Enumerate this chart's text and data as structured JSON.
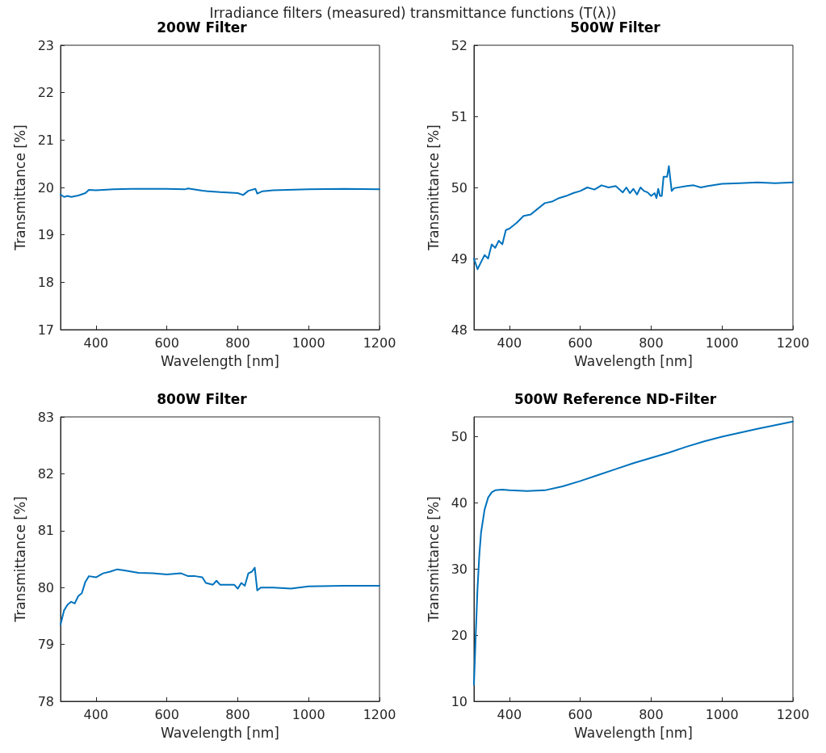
{
  "chart_data": [
    {
      "type": "other",
      "title": "Irradiance filters (measured) transmittance functions (T(λ))"
    },
    {
      "type": "line",
      "title": "200W Filter",
      "xlabel": "Wavelength [nm]",
      "ylabel": "Transmittance [%]",
      "xlim": [
        300,
        1200
      ],
      "xticks": [
        400,
        600,
        800,
        1000,
        1200
      ],
      "ylim": [
        17,
        23
      ],
      "yticks": [
        17,
        18,
        19,
        20,
        21,
        22,
        23
      ],
      "grid": false,
      "marker": "none",
      "line_style": "solid",
      "series": [
        {
          "color": "#0072bd",
          "x": [
            300,
            310,
            320,
            330,
            350,
            370,
            380,
            400,
            450,
            500,
            550,
            600,
            650,
            660,
            700,
            750,
            800,
            815,
            830,
            850,
            855,
            870,
            900,
            1000,
            1100,
            1200
          ],
          "values": [
            19.85,
            19.8,
            19.82,
            19.8,
            19.83,
            19.88,
            19.95,
            19.94,
            19.96,
            19.97,
            19.97,
            19.97,
            19.96,
            19.98,
            19.93,
            19.9,
            19.88,
            19.84,
            19.93,
            19.97,
            19.87,
            19.92,
            19.94,
            19.96,
            19.97,
            19.96
          ]
        }
      ]
    },
    {
      "type": "line",
      "title": "500W Filter",
      "xlabel": "Wavelength [nm]",
      "ylabel": "Transmittance [%]",
      "xlim": [
        300,
        1200
      ],
      "xticks": [
        400,
        600,
        800,
        1000,
        1200
      ],
      "ylim": [
        48,
        52
      ],
      "yticks": [
        48,
        49,
        50,
        51,
        52
      ],
      "grid": false,
      "marker": "none",
      "line_style": "solid",
      "series": [
        {
          "color": "#0072bd",
          "x": [
            300,
            310,
            320,
            330,
            340,
            350,
            360,
            370,
            380,
            390,
            400,
            420,
            440,
            460,
            480,
            500,
            520,
            540,
            560,
            580,
            600,
            620,
            640,
            660,
            680,
            700,
            720,
            730,
            740,
            750,
            760,
            770,
            780,
            790,
            800,
            810,
            815,
            820,
            825,
            830,
            835,
            845,
            850,
            858,
            865,
            900,
            920,
            940,
            960,
            1000,
            1050,
            1100,
            1150,
            1200
          ],
          "values": [
            49.0,
            48.85,
            48.95,
            49.05,
            49.0,
            49.2,
            49.15,
            49.25,
            49.2,
            49.4,
            49.42,
            49.5,
            49.6,
            49.62,
            49.7,
            49.78,
            49.8,
            49.85,
            49.88,
            49.92,
            49.95,
            50.0,
            49.97,
            50.03,
            50.0,
            50.02,
            49.93,
            50.0,
            49.92,
            49.98,
            49.9,
            50.0,
            49.95,
            49.93,
            49.88,
            49.92,
            49.85,
            49.98,
            49.88,
            49.88,
            50.15,
            50.15,
            50.3,
            49.95,
            49.99,
            50.02,
            50.03,
            50.0,
            50.02,
            50.05,
            50.06,
            50.07,
            50.06,
            50.07
          ]
        }
      ]
    },
    {
      "type": "line",
      "title": "800W Filter",
      "xlabel": "Wavelength [nm]",
      "ylabel": "Transmittance [%]",
      "xlim": [
        300,
        1200
      ],
      "xticks": [
        400,
        600,
        800,
        1000,
        1200
      ],
      "ylim": [
        78,
        83
      ],
      "yticks": [
        78,
        79,
        80,
        81,
        82,
        83
      ],
      "grid": false,
      "marker": "none",
      "line_style": "solid",
      "series": [
        {
          "color": "#0072bd",
          "x": [
            300,
            310,
            320,
            330,
            340,
            350,
            360,
            370,
            380,
            400,
            420,
            440,
            460,
            480,
            500,
            520,
            560,
            600,
            640,
            660,
            680,
            700,
            710,
            730,
            740,
            750,
            770,
            790,
            800,
            810,
            820,
            830,
            840,
            848,
            855,
            865,
            900,
            950,
            1000,
            1100,
            1200
          ],
          "values": [
            79.35,
            79.6,
            79.7,
            79.75,
            79.72,
            79.85,
            79.9,
            80.1,
            80.2,
            80.18,
            80.25,
            80.28,
            80.32,
            80.3,
            80.28,
            80.26,
            80.25,
            80.23,
            80.25,
            80.2,
            80.2,
            80.18,
            80.08,
            80.05,
            80.12,
            80.05,
            80.05,
            80.05,
            79.98,
            80.08,
            80.03,
            80.25,
            80.28,
            80.35,
            79.95,
            80.0,
            80.0,
            79.98,
            80.02,
            80.03,
            80.03
          ]
        }
      ]
    },
    {
      "type": "line",
      "title": "500W Reference ND-Filter",
      "xlabel": "Wavelength [nm]",
      "ylabel": "Transmittance [%]",
      "xlim": [
        300,
        1200
      ],
      "xticks": [
        400,
        600,
        800,
        1000,
        1200
      ],
      "ylim": [
        10,
        53
      ],
      "yticks": [
        10,
        20,
        30,
        40,
        50
      ],
      "grid": false,
      "marker": "none",
      "line_style": "solid",
      "series": [
        {
          "color": "#0072bd",
          "x": [
            300,
            305,
            310,
            315,
            320,
            330,
            340,
            350,
            360,
            380,
            400,
            450,
            500,
            550,
            600,
            650,
            700,
            750,
            800,
            850,
            900,
            950,
            1000,
            1100,
            1200
          ],
          "values": [
            12.5,
            20,
            27,
            32,
            35.5,
            39,
            40.8,
            41.6,
            41.9,
            42.0,
            41.9,
            41.8,
            41.9,
            42.5,
            43.3,
            44.2,
            45.1,
            46.0,
            46.8,
            47.6,
            48.5,
            49.3,
            50.0,
            51.2,
            52.3
          ]
        }
      ]
    }
  ]
}
